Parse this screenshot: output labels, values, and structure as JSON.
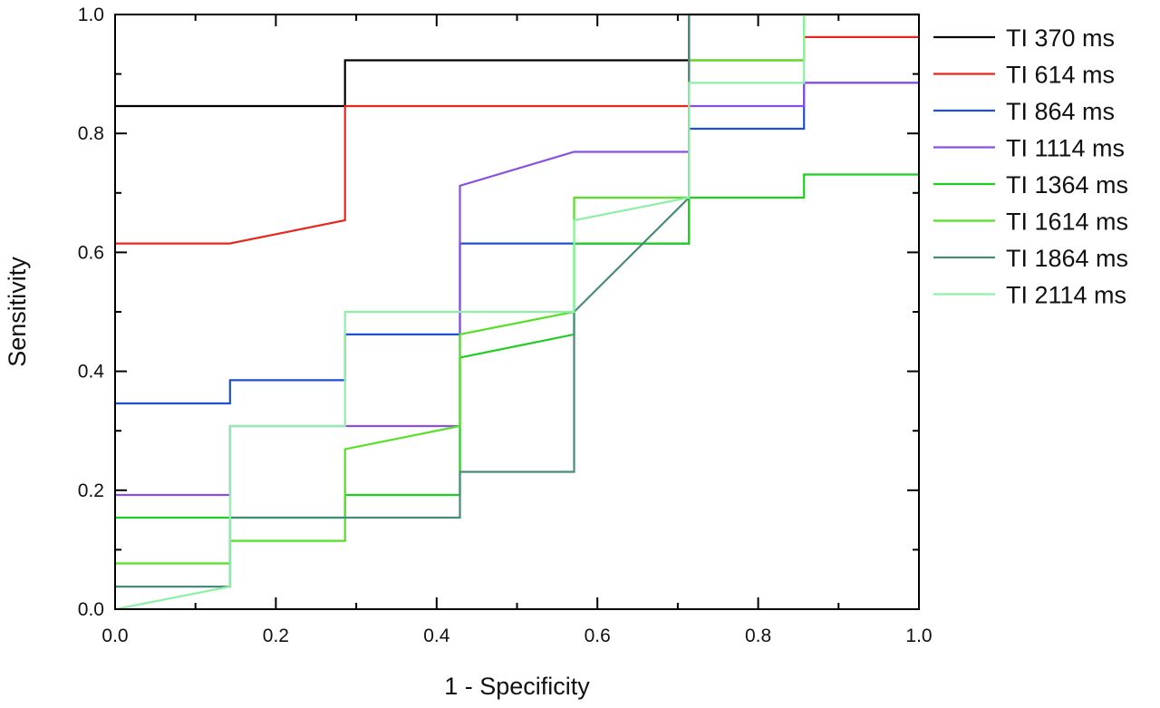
{
  "chart_data": {
    "type": "line",
    "xlabel": "1 - Specificity",
    "ylabel": "Sensitivity",
    "xlim": [
      0,
      1
    ],
    "ylim": [
      0,
      1
    ],
    "x_ticks": [
      "0.0",
      "0.2",
      "0.4",
      "0.6",
      "0.8",
      "1.0"
    ],
    "y_ticks": [
      "0.0",
      "0.2",
      "0.4",
      "0.6",
      "0.8",
      "1.0"
    ],
    "grid": false,
    "legend_position": "right",
    "series": [
      {
        "name": "TI 370 ms",
        "color": "#000000",
        "points": [
          [
            0,
            0.846
          ],
          [
            0.286,
            0.846
          ],
          [
            0.286,
            0.923
          ],
          [
            0.714,
            0.923
          ],
          [
            0.714,
            1.0
          ],
          [
            1.0,
            1.0
          ]
        ]
      },
      {
        "name": "TI 614 ms",
        "color": "#e8261d",
        "points": [
          [
            0,
            0.615
          ],
          [
            0.143,
            0.615
          ],
          [
            0.286,
            0.654
          ],
          [
            0.286,
            0.846
          ],
          [
            0.714,
            0.846
          ],
          [
            0.714,
            0.923
          ],
          [
            0.857,
            0.923
          ],
          [
            0.857,
            0.962
          ],
          [
            1.0,
            0.962
          ]
        ]
      },
      {
        "name": "TI 864 ms",
        "color": "#1f4fd6",
        "points": [
          [
            0,
            0.346
          ],
          [
            0.143,
            0.346
          ],
          [
            0.143,
            0.385
          ],
          [
            0.286,
            0.385
          ],
          [
            0.286,
            0.462
          ],
          [
            0.429,
            0.462
          ],
          [
            0.429,
            0.615
          ],
          [
            0.571,
            0.615
          ],
          [
            0.714,
            0.615
          ],
          [
            0.714,
            0.808
          ],
          [
            0.857,
            0.808
          ],
          [
            0.857,
            0.885
          ],
          [
            1.0,
            0.885
          ]
        ]
      },
      {
        "name": "TI 1114 ms",
        "color": "#8a4fe0",
        "points": [
          [
            0,
            0.192
          ],
          [
            0.143,
            0.192
          ],
          [
            0.143,
            0.308
          ],
          [
            0.429,
            0.308
          ],
          [
            0.429,
            0.712
          ],
          [
            0.571,
            0.769
          ],
          [
            0.714,
            0.769
          ],
          [
            0.714,
            0.846
          ],
          [
            0.857,
            0.846
          ],
          [
            0.857,
            0.885
          ],
          [
            1.0,
            0.885
          ]
        ]
      },
      {
        "name": "TI 1364 ms",
        "color": "#1fcf1f",
        "points": [
          [
            0,
            0.154
          ],
          [
            0.143,
            0.154
          ],
          [
            0.286,
            0.154
          ],
          [
            0.286,
            0.192
          ],
          [
            0.429,
            0.192
          ],
          [
            0.429,
            0.423
          ],
          [
            0.571,
            0.462
          ],
          [
            0.571,
            0.615
          ],
          [
            0.714,
            0.615
          ],
          [
            0.714,
            0.692
          ],
          [
            0.857,
            0.692
          ],
          [
            0.857,
            0.731
          ],
          [
            1.0,
            0.731
          ]
        ]
      },
      {
        "name": "TI 1614 ms",
        "color": "#55e025",
        "points": [
          [
            0,
            0.077
          ],
          [
            0.143,
            0.077
          ],
          [
            0.143,
            0.115
          ],
          [
            0.286,
            0.115
          ],
          [
            0.286,
            0.269
          ],
          [
            0.429,
            0.308
          ],
          [
            0.429,
            0.462
          ],
          [
            0.571,
            0.5
          ],
          [
            0.571,
            0.692
          ],
          [
            0.714,
            0.692
          ],
          [
            0.714,
            0.923
          ],
          [
            0.857,
            0.923
          ],
          [
            0.857,
            1.0
          ]
        ]
      },
      {
        "name": "TI 1864 ms",
        "color": "#4a8a7a",
        "points": [
          [
            0,
            0.038
          ],
          [
            0.143,
            0.038
          ],
          [
            0.143,
            0.154
          ],
          [
            0.429,
            0.154
          ],
          [
            0.429,
            0.231
          ],
          [
            0.571,
            0.231
          ],
          [
            0.571,
            0.5
          ],
          [
            0.714,
            0.692
          ],
          [
            0.714,
            1.0
          ]
        ]
      },
      {
        "name": "TI 2114 ms",
        "color": "#8ef0a8",
        "points": [
          [
            0,
            0
          ],
          [
            0.143,
            0.038
          ],
          [
            0.143,
            0.308
          ],
          [
            0.286,
            0.308
          ],
          [
            0.286,
            0.5
          ],
          [
            0.571,
            0.5
          ],
          [
            0.571,
            0.654
          ],
          [
            0.714,
            0.692
          ],
          [
            0.714,
            0.885
          ],
          [
            0.857,
            0.885
          ],
          [
            0.857,
            1.0
          ]
        ]
      }
    ]
  }
}
